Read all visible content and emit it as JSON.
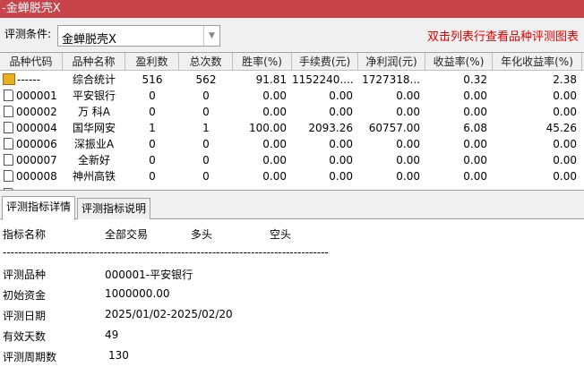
{
  "window": {
    "title": "-金蝉脱壳X"
  },
  "condition": {
    "label": "评测条件:",
    "value": "金蝉脱壳X",
    "hint": "双击列表行查看品种评测图表"
  },
  "table": {
    "columns": [
      "品种代码",
      "品种名称",
      "盈利数",
      "总次数",
      "胜率(%)",
      "手续费(元)",
      "净利润(元)",
      "收益率(%)",
      "年化收益率(%)"
    ],
    "rows": [
      [
        "------",
        "综合统计",
        "516",
        "562",
        "91.81",
        "1152240....",
        "1727318...",
        "0.32",
        "2.38"
      ],
      [
        "000001",
        "平安银行",
        "0",
        "0",
        "0.00",
        "0.00",
        "0.00",
        "0.00",
        "0.00"
      ],
      [
        "000002",
        "万 科A",
        "0",
        "0",
        "0.00",
        "0.00",
        "0.00",
        "0.00",
        "0.00"
      ],
      [
        "000004",
        "国华网安",
        "1",
        "1",
        "100.00",
        "2093.26",
        "60757.00",
        "6.08",
        "45.26"
      ],
      [
        "000006",
        "深振业A",
        "0",
        "0",
        "0.00",
        "0.00",
        "0.00",
        "0.00",
        "0.00"
      ],
      [
        "000007",
        "全新好",
        "0",
        "0",
        "0.00",
        "0.00",
        "0.00",
        "0.00",
        "0.00"
      ],
      [
        "000008",
        "神州高铁",
        "0",
        "0",
        "0.00",
        "0.00",
        "0.00",
        "0.00",
        "0.00"
      ]
    ]
  },
  "tabs": [
    {
      "label": "评测指标详情",
      "active": true
    },
    {
      "label": "评测指标说明",
      "active": false
    }
  ],
  "detail": {
    "header": [
      "指标名称",
      "全部交易",
      "多头",
      "空头"
    ],
    "separator": "------------------------------------------------------------------------------------------",
    "items": [
      {
        "label": "评测品种",
        "value": "000001-平安银行"
      },
      {
        "label": "初始资金",
        "value": "1000000.00"
      },
      {
        "label": "评测日期",
        "value": "2025/01/02-2025/02/20"
      },
      {
        "label": "有效天数",
        "value": "49"
      },
      {
        "label": "评测周期数",
        "value": "130"
      }
    ]
  }
}
